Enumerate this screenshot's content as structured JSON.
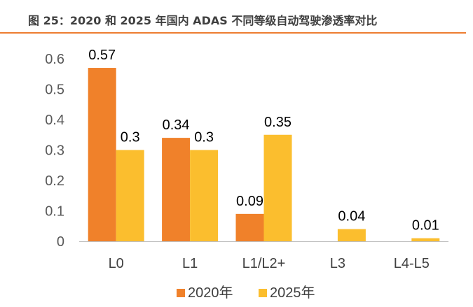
{
  "title": "图 25：2020 和 2025 年国内 ADAS 不同等级自动驾驶渗透率对比",
  "colors": {
    "rule": "#ED7D31",
    "series_2020": "#F0812A",
    "series_2025": "#FBBE2E",
    "axis": "#BFBFBF"
  },
  "chart_data": {
    "type": "bar",
    "categories": [
      "L0",
      "L1",
      "L1/L2+",
      "L3",
      "L4-L5"
    ],
    "series": [
      {
        "name": "2020年",
        "values": [
          0.57,
          0.34,
          0.09,
          null,
          null
        ]
      },
      {
        "name": "2025年",
        "values": [
          0.3,
          0.3,
          0.35,
          0.04,
          0.01
        ]
      }
    ],
    "data_labels": [
      [
        "0.57",
        "0.34",
        "0.09",
        "",
        ""
      ],
      [
        "0.3",
        "0.3",
        "0.35",
        "0.04",
        "0.01"
      ]
    ],
    "ylim": [
      0,
      0.6
    ],
    "yticks": [
      0,
      0.1,
      0.2,
      0.3,
      0.4,
      0.5,
      0.6
    ],
    "ytick_labels": [
      "0",
      "0.1",
      "0.2",
      "0.3",
      "0.4",
      "0.5",
      "0.6"
    ],
    "legend_position": "bottom",
    "grid": false
  }
}
